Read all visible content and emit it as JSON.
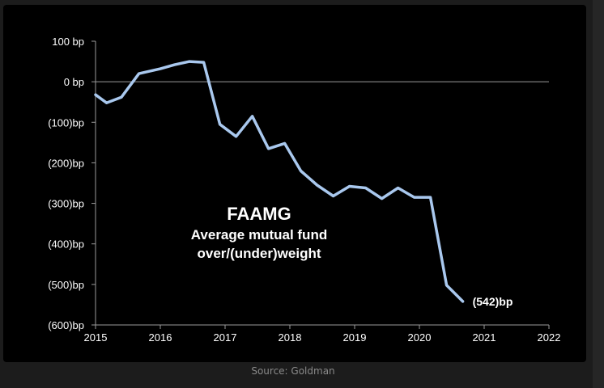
{
  "chart_data": {
    "type": "line",
    "title": "FAAMG",
    "subtitle_lines": [
      "Average mutual fund",
      "over/(under)weight"
    ],
    "end_label": "(542)bp",
    "xlim": [
      2015,
      2022
    ],
    "ylim": [
      -600,
      100
    ],
    "x_ticks": [
      2015,
      2016,
      2017,
      2018,
      2019,
      2020,
      2021,
      2022
    ],
    "x_tick_labels": [
      "2015",
      "2016",
      "2017",
      "2018",
      "2019",
      "2020",
      "2021",
      "2022"
    ],
    "y_ticks": [
      100,
      0,
      -100,
      -200,
      -300,
      -400,
      -500,
      -600
    ],
    "y_tick_labels": [
      "100 bp",
      "0 bp",
      "(100)bp",
      "(200)bp",
      "(300)bp",
      "(400)bp",
      "(500)bp",
      "(600)bp"
    ],
    "grid": false,
    "line_color": "#a9c8ee",
    "series": [
      {
        "x": [
          2015.0,
          2015.17,
          2015.4,
          2015.67,
          2016.0,
          2016.22,
          2016.45,
          2016.67,
          2016.92,
          2017.17,
          2017.42,
          2017.67,
          2017.92,
          2018.17,
          2018.42,
          2018.67,
          2018.92,
          2019.17,
          2019.42,
          2019.67,
          2019.92,
          2020.17,
          2020.42,
          2020.67
        ],
        "y": [
          -32,
          -52,
          -38,
          20,
          32,
          42,
          50,
          48,
          -105,
          -135,
          -85,
          -165,
          -152,
          -220,
          -255,
          -282,
          -258,
          -262,
          -288,
          -262,
          -285,
          -285,
          -502,
          -542
        ]
      }
    ]
  },
  "source": "Source: Goldman"
}
